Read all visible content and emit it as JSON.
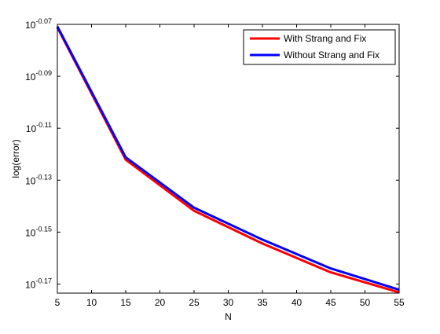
{
  "chart_data": {
    "type": "line",
    "title": "",
    "xlabel": "N",
    "ylabel": "log(error)",
    "xlim": [
      5,
      55
    ],
    "ylim": [
      -0.1735,
      -0.07
    ],
    "yscale": "log",
    "xticks": [
      5,
      10,
      15,
      20,
      25,
      30,
      35,
      40,
      45,
      50,
      55
    ],
    "xtick_labels": [
      "5",
      "10",
      "15",
      "20",
      "25",
      "30",
      "35",
      "40",
      "45",
      "50",
      "55"
    ],
    "yticks": [
      -0.07,
      -0.09,
      -0.11,
      -0.13,
      -0.15,
      -0.17
    ],
    "ytick_base": "10",
    "ytick_exponents": [
      "-0.07",
      "-0.09",
      "-0.11",
      "-0.13",
      "-0.15",
      "-0.17"
    ],
    "grid": false,
    "legend": "top-right",
    "x": [
      5,
      15,
      25,
      35,
      45,
      55
    ],
    "series": [
      {
        "name": "With Strang and Fix",
        "color": "#ff0000",
        "values": [
          -0.0712,
          -0.1221,
          -0.1418,
          -0.1544,
          -0.1655,
          -0.1732
        ]
      },
      {
        "name": "Without Strang and Fix",
        "color": "#0000ff",
        "values": [
          -0.0708,
          -0.1212,
          -0.1406,
          -0.1529,
          -0.164,
          -0.1722
        ]
      }
    ]
  }
}
